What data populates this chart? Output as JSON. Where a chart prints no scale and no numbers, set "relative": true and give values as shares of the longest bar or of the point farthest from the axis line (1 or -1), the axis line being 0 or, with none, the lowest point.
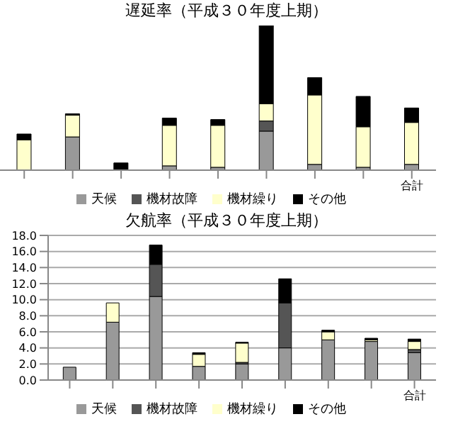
{
  "chart_data": [
    {
      "type": "bar",
      "title": "遅延率（平成３０年度上期）",
      "stacked": true,
      "relative": true,
      "legend": "bottom",
      "categories": [
        null,
        null,
        null,
        null,
        null,
        null,
        null,
        null,
        "合計"
      ],
      "series": [
        {
          "name": "天候",
          "color": "#999999",
          "values": [
            0,
            0.23,
            0,
            0.03,
            0.02,
            0.27,
            0.04,
            0.02,
            0.04
          ]
        },
        {
          "name": "機材故障",
          "color": "#555555",
          "values": [
            0,
            0,
            0,
            0,
            0,
            0.07,
            0,
            0,
            0
          ]
        },
        {
          "name": "機材繰り",
          "color": "#ffffcc",
          "values": [
            0.21,
            0.15,
            0,
            0.28,
            0.29,
            0.12,
            0.48,
            0.28,
            0.29
          ]
        },
        {
          "name": "その他",
          "color": "#000000",
          "values": [
            0.04,
            0.01,
            0.05,
            0.05,
            0.04,
            0.54,
            0.12,
            0.21,
            0.1
          ]
        }
      ]
    },
    {
      "type": "bar",
      "title": "欠航率（平成３０年度上期）",
      "stacked": true,
      "legend": "bottom",
      "grid": "y",
      "ylim": [
        0,
        18
      ],
      "yticks": [
        {
          "value": 0,
          "label": "0.0"
        },
        {
          "value": 2,
          "label": "2.0"
        },
        {
          "value": 4,
          "label": "4.0"
        },
        {
          "value": 6,
          "label": "6.0"
        },
        {
          "value": 8,
          "label": "8.0"
        },
        {
          "value": 10,
          "label": "10.0"
        },
        {
          "value": 12,
          "label": "12.0"
        },
        {
          "value": 14,
          "label": "14.0"
        },
        {
          "value": 16,
          "label": "16.0"
        },
        {
          "value": 18,
          "label": "18.0"
        }
      ],
      "categories": [
        null,
        null,
        null,
        null,
        null,
        null,
        null,
        null,
        "合計"
      ],
      "series": [
        {
          "name": "天候",
          "color": "#999999",
          "values": [
            1.6,
            7.2,
            10.4,
            1.7,
            2.0,
            4.0,
            5.0,
            4.8,
            3.4
          ]
        },
        {
          "name": "機材故障",
          "color": "#555555",
          "values": [
            0,
            0,
            4.0,
            0,
            0.2,
            5.6,
            0,
            0,
            0.4
          ]
        },
        {
          "name": "機材繰り",
          "color": "#ffffcc",
          "values": [
            0,
            2.4,
            0,
            1.5,
            2.4,
            0,
            1.0,
            0.2,
            1.0
          ]
        },
        {
          "name": "その他",
          "color": "#000000",
          "values": [
            0,
            0,
            2.4,
            0.2,
            0.1,
            3.0,
            0.2,
            0.2,
            0.3
          ]
        }
      ]
    }
  ]
}
